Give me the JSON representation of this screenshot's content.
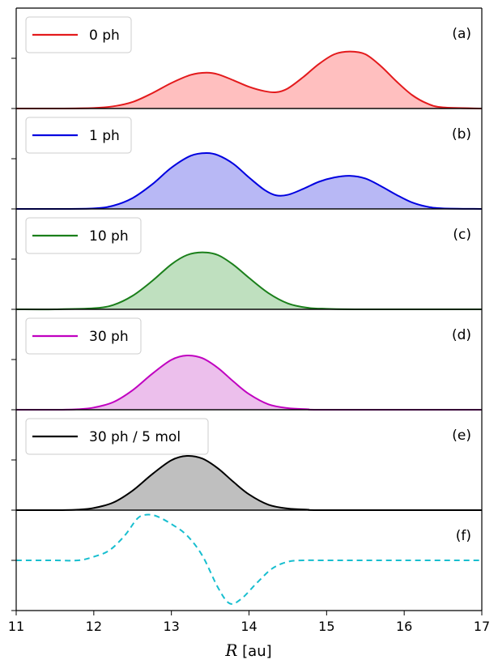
{
  "chart_data": [
    {
      "panel": "(a)",
      "type": "area",
      "series": [
        {
          "name": "0 ph",
          "color": "#e31a1c",
          "fill": "#ffbfbf",
          "style": "solid"
        }
      ],
      "x": [
        11.0,
        11.5,
        12.0,
        12.25,
        12.5,
        12.75,
        13.0,
        13.25,
        13.45,
        13.6,
        13.8,
        14.0,
        14.2,
        14.35,
        14.5,
        14.7,
        14.9,
        15.1,
        15.3,
        15.5,
        15.7,
        15.9,
        16.1,
        16.3,
        16.5,
        17.0
      ],
      "values": [
        0.0,
        0.0,
        0.01,
        0.04,
        0.12,
        0.28,
        0.47,
        0.62,
        0.66,
        0.63,
        0.52,
        0.4,
        0.32,
        0.3,
        0.37,
        0.58,
        0.82,
        1.0,
        1.05,
        1.0,
        0.78,
        0.5,
        0.25,
        0.09,
        0.02,
        0.0
      ]
    },
    {
      "panel": "(b)",
      "type": "area",
      "series": [
        {
          "name": "1 ph",
          "color": "#0000e0",
          "fill": "#b8b8f5",
          "style": "solid"
        }
      ],
      "x": [
        11.0,
        11.5,
        12.0,
        12.25,
        12.5,
        12.75,
        13.0,
        13.25,
        13.45,
        13.6,
        13.8,
        14.0,
        14.2,
        14.35,
        14.5,
        14.7,
        14.9,
        15.1,
        15.3,
        15.5,
        15.7,
        15.9,
        16.1,
        16.3,
        16.5,
        17.0
      ],
      "values": [
        0.0,
        0.0,
        0.01,
        0.06,
        0.2,
        0.45,
        0.76,
        0.98,
        1.03,
        0.99,
        0.83,
        0.58,
        0.35,
        0.25,
        0.26,
        0.37,
        0.5,
        0.58,
        0.61,
        0.56,
        0.42,
        0.26,
        0.12,
        0.04,
        0.01,
        0.0
      ]
    },
    {
      "panel": "(c)",
      "type": "area",
      "series": [
        {
          "name": "10 ph",
          "color": "#1a7f1a",
          "fill": "#bfe0bf",
          "style": "solid"
        }
      ],
      "x": [
        11.0,
        11.5,
        12.0,
        12.25,
        12.5,
        12.75,
        13.0,
        13.2,
        13.4,
        13.6,
        13.8,
        14.0,
        14.25,
        14.5,
        14.75,
        15.0,
        15.5,
        17.0
      ],
      "values": [
        0.0,
        0.0,
        0.02,
        0.08,
        0.25,
        0.52,
        0.83,
        1.0,
        1.05,
        1.0,
        0.82,
        0.58,
        0.3,
        0.11,
        0.03,
        0.01,
        0.0,
        0.0
      ]
    },
    {
      "panel": "(d)",
      "type": "area",
      "series": [
        {
          "name": "30 ph",
          "color": "#c000c0",
          "fill": "#ecbfec",
          "style": "solid"
        }
      ],
      "x": [
        11.0,
        11.5,
        11.8,
        12.0,
        12.25,
        12.5,
        12.75,
        13.0,
        13.2,
        13.4,
        13.6,
        13.8,
        14.0,
        14.25,
        14.5,
        14.75,
        15.0,
        17.0
      ],
      "values": [
        0.0,
        0.0,
        0.01,
        0.04,
        0.14,
        0.36,
        0.66,
        0.92,
        1.0,
        0.95,
        0.77,
        0.52,
        0.29,
        0.1,
        0.03,
        0.01,
        0.0,
        0.0
      ]
    },
    {
      "panel": "(e)",
      "type": "area",
      "series": [
        {
          "name": "30 ph / 5 mol",
          "color": "#000000",
          "fill": "#bfbfbf",
          "style": "solid"
        }
      ],
      "x": [
        11.0,
        11.5,
        11.8,
        12.0,
        12.25,
        12.5,
        12.75,
        13.0,
        13.2,
        13.4,
        13.6,
        13.8,
        14.0,
        14.25,
        14.5,
        14.75,
        15.0,
        17.0
      ],
      "values": [
        0.0,
        0.0,
        0.01,
        0.04,
        0.14,
        0.36,
        0.66,
        0.92,
        1.0,
        0.95,
        0.77,
        0.52,
        0.29,
        0.1,
        0.03,
        0.01,
        0.0,
        0.0
      ]
    },
    {
      "panel": "(f)",
      "type": "line",
      "series": [
        {
          "name": "",
          "color": "#17becf",
          "style": "dashed"
        }
      ],
      "x": [
        11.0,
        11.5,
        11.8,
        12.0,
        12.2,
        12.4,
        12.55,
        12.65,
        12.8,
        13.0,
        13.2,
        13.4,
        13.6,
        13.75,
        13.9,
        14.1,
        14.3,
        14.5,
        14.7,
        15.0,
        16.0,
        17.0
      ],
      "values": [
        0.0,
        0.0,
        0.0,
        0.08,
        0.22,
        0.55,
        0.9,
        1.0,
        0.98,
        0.8,
        0.55,
        0.1,
        -0.6,
        -0.95,
        -0.85,
        -0.5,
        -0.18,
        -0.03,
        0.0,
        0.0,
        0.0,
        0.0
      ]
    }
  ],
  "xaxis": {
    "label": "R [au]",
    "ticks": [
      "11",
      "12",
      "13",
      "14",
      "15",
      "16",
      "17"
    ],
    "range": [
      11,
      17
    ]
  },
  "colors": {
    "axes": "#000000",
    "background": "#ffffff"
  }
}
